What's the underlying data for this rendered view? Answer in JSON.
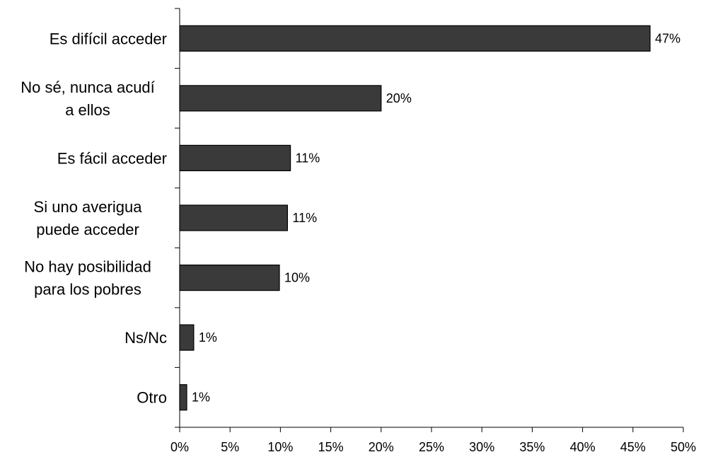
{
  "chart_data": {
    "type": "bar",
    "orientation": "horizontal",
    "categories": [
      [
        "Es difícil acceder"
      ],
      [
        "No sé, nunca acudí",
        "a ellos"
      ],
      [
        "Es fácil acceder"
      ],
      [
        "Si uno averigua",
        "puede acceder"
      ],
      [
        "No hay posibilidad",
        "para los pobres"
      ],
      [
        "Ns/Nc"
      ],
      [
        "Otro"
      ]
    ],
    "values": [
      46.7,
      20.0,
      11.0,
      10.7,
      9.9,
      1.4,
      0.7
    ],
    "value_labels": [
      "47%",
      "20%",
      "11%",
      "11%",
      "10%",
      "1%",
      "1%"
    ],
    "xlim": [
      0,
      50
    ],
    "x_ticks": [
      0,
      5,
      10,
      15,
      20,
      25,
      30,
      35,
      40,
      45,
      50
    ],
    "x_tick_labels": [
      "0%",
      "5%",
      "10%",
      "15%",
      "20%",
      "25%",
      "30%",
      "35%",
      "40%",
      "45%",
      "50%"
    ],
    "grid": false,
    "legend": "none",
    "colors": {
      "bar_fill": "#3a3a3a",
      "bar_stroke": "#000000",
      "axis": "#000000"
    }
  }
}
